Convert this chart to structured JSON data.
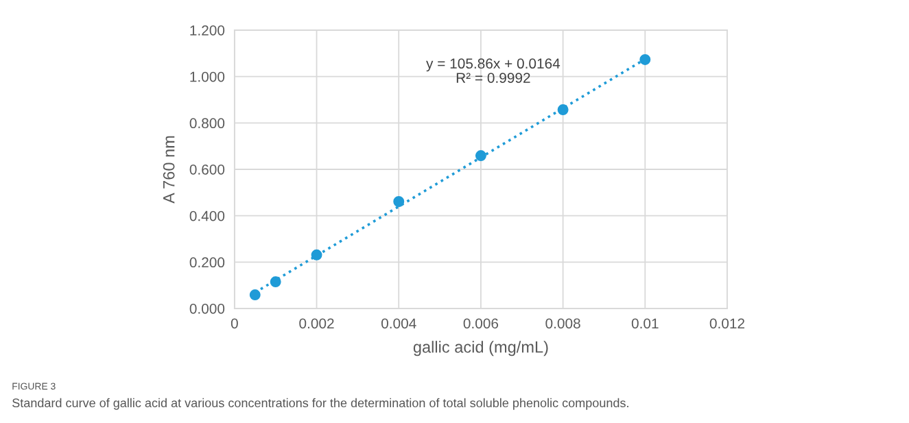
{
  "chart_data": {
    "type": "scatter",
    "xlabel": "gallic acid (mg/mL)",
    "ylabel": "A 760 nm",
    "series": [
      {
        "color": "#1f9bd7",
        "marker": "circle",
        "x": [
          0.0005,
          0.001,
          0.002,
          0.004,
          0.006,
          0.008,
          0.01
        ],
        "values": [
          0.059,
          0.115,
          0.231,
          0.461,
          0.659,
          0.857,
          1.073
        ]
      },
      {
        "type": "line",
        "color": "#1f9bd7",
        "line_style": "dotted",
        "marker": "none",
        "x": [
          0.0005,
          0.01
        ],
        "values": [
          0.069,
          1.075
        ]
      }
    ],
    "xlim": [
      0,
      0.012
    ],
    "xticks": [
      0,
      0.002,
      0.004,
      0.006,
      0.008,
      0.01,
      0.012
    ],
    "ylim": [
      0,
      1.2
    ],
    "yticks": [
      {
        "value": 0,
        "label": "0.000"
      },
      {
        "value": 0.2,
        "label": "0.200"
      },
      {
        "value": 0.4,
        "label": "0.400"
      },
      {
        "value": 0.6,
        "label": "0.600"
      },
      {
        "value": 0.8,
        "label": "0.800"
      },
      {
        "value": 1.0,
        "label": "1.000"
      },
      {
        "value": 1.2,
        "label": "1.200"
      }
    ],
    "grid": true,
    "legend": false,
    "annotations": [
      "y = 105.86x + 0.0164\nR² = 0.9992",
      "FIGURE 3",
      "Standard curve of gallic acid at various concentrations for the determination of total soluble phenolic compounds."
    ]
  }
}
